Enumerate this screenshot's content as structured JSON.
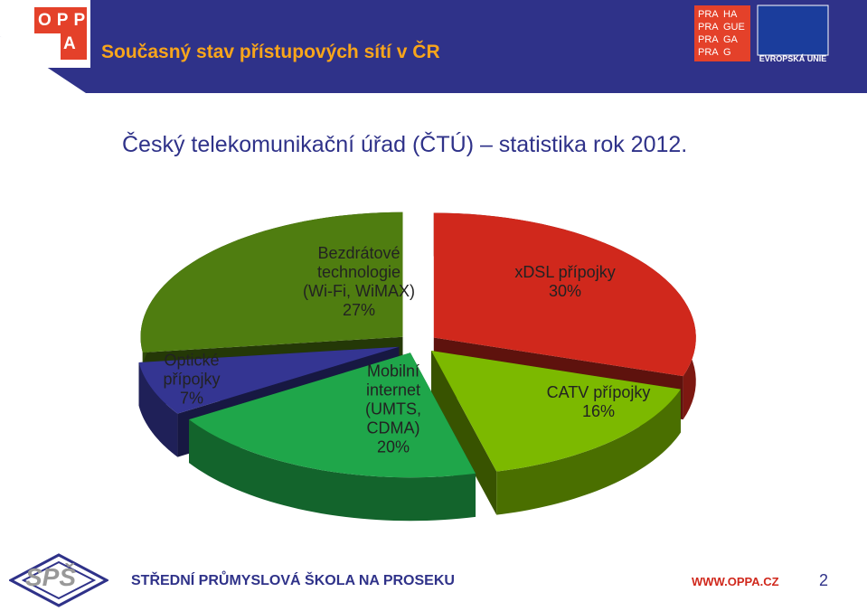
{
  "header": {
    "title": "Současný stav přístupových sítí v ČR",
    "oppa_logo": [
      "O",
      "P",
      "P",
      "A"
    ],
    "praha_logo": [
      "PRA",
      "HA",
      "PRA",
      "GUE",
      "PRA",
      "GA",
      "PRA",
      "G"
    ],
    "eu_logo": "EVROPSKÁ UNIE"
  },
  "subtitle": "Český telekomunikační úřad (ČTÚ) – statistika rok 2012.",
  "chart_data": {
    "type": "pie3d",
    "categories": [
      "xDSL přípojky",
      "CATV přípojky",
      "Mobilní internet (UMTS, CDMA)",
      "Optické přípojky",
      "Bezdrátové technologie (Wi-Fi, WiMAX)"
    ],
    "values": [
      30,
      16,
      20,
      7,
      27
    ],
    "value_labels": [
      "30%",
      "16%",
      "20%",
      "7%",
      "27%"
    ],
    "colors": [
      "#d0281c",
      "#7cb900",
      "#1fa64a",
      "#343592",
      "#4f7d10"
    ]
  },
  "footer": {
    "logo": "SPŠ",
    "school": "STŘEDNÍ PRŮMYSLOVÁ ŠKOLA NA PROSEKU",
    "url": "WWW.OPPA.CZ",
    "page": "2"
  }
}
